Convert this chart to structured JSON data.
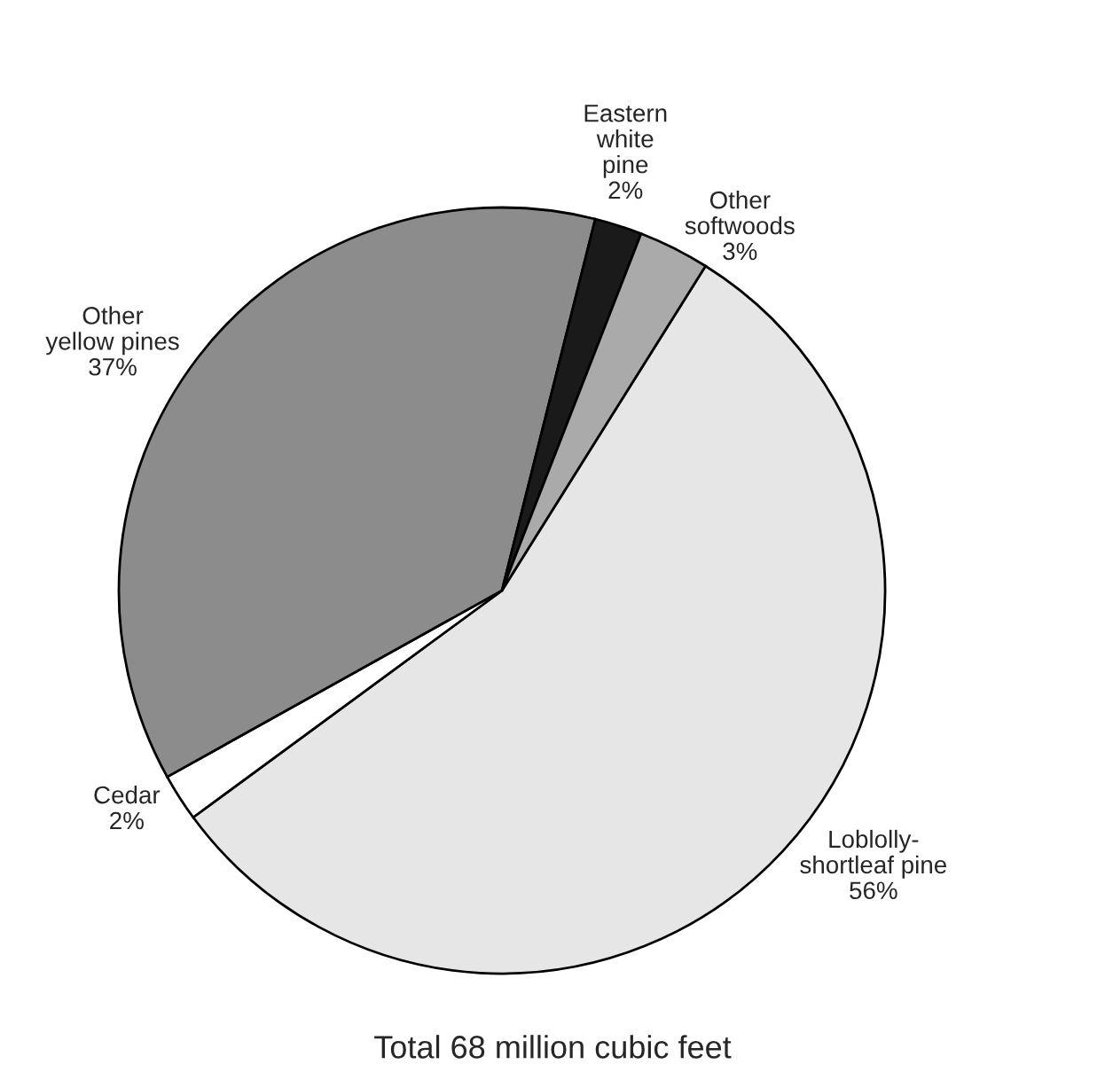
{
  "chart_data": {
    "type": "pie",
    "categories": [
      "Loblolly-\nshortleaf pine",
      "Cedar",
      "Other\nyellow pines",
      "Eastern\nwhite\npine",
      "Other\nsoftwoods"
    ],
    "values": [
      56,
      2,
      37,
      2,
      3
    ],
    "value_labels": [
      "56%",
      "2%",
      "37%",
      "2%",
      "3%"
    ],
    "colors": [
      "#e6e6e6",
      "#ffffff",
      "#8c8c8c",
      "#1a1a1a",
      "#aaaaaa"
    ],
    "annotations": [
      "Total 68 million cubic feet"
    ]
  }
}
